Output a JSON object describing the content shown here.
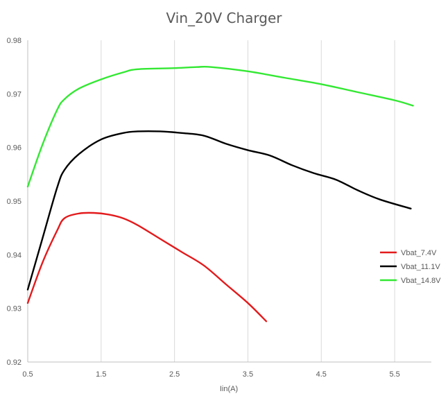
{
  "chart_data": {
    "type": "line",
    "title": "Vin_20V Charger",
    "xlabel": "Iin(A)",
    "ylabel": "",
    "xlim": [
      0.5,
      6.0
    ],
    "ylim": [
      0.92,
      0.98
    ],
    "x_ticks": [
      "0.5",
      "1.5",
      "2.5",
      "3.5",
      "4.5",
      "5.5"
    ],
    "y_ticks": [
      "0.92",
      "0.93",
      "0.94",
      "0.95",
      "0.96",
      "0.97",
      "0.98"
    ],
    "x_tick_values": [
      0.5,
      1.5,
      2.5,
      3.5,
      4.5,
      5.5
    ],
    "y_tick_values": [
      0.92,
      0.93,
      0.94,
      0.95,
      0.96,
      0.97,
      0.98
    ],
    "grid": "vertical",
    "legend_position": "right",
    "series": [
      {
        "name": "Vbat_7.4V",
        "color": "#e31a1c",
        "x": [
          0.5,
          0.7,
          0.9,
          1.0,
          1.2,
          1.4,
          1.6,
          1.8,
          2.0,
          2.3,
          2.6,
          2.9,
          3.2,
          3.5,
          3.75
        ],
        "y": [
          0.931,
          0.9385,
          0.9445,
          0.9468,
          0.9477,
          0.9478,
          0.9475,
          0.9468,
          0.9455,
          0.943,
          0.9405,
          0.938,
          0.9345,
          0.931,
          0.9276
        ]
      },
      {
        "name": "Vbat_11.1V",
        "color": "#000000",
        "x": [
          0.5,
          0.7,
          0.9,
          1.0,
          1.2,
          1.5,
          1.8,
          2.0,
          2.3,
          2.6,
          2.9,
          3.2,
          3.5,
          3.8,
          4.1,
          4.4,
          4.7,
          5.0,
          5.3,
          5.72
        ],
        "y": [
          0.9335,
          0.943,
          0.9525,
          0.9558,
          0.9588,
          0.9615,
          0.9627,
          0.963,
          0.963,
          0.9627,
          0.9622,
          0.9607,
          0.9595,
          0.9585,
          0.9567,
          0.9552,
          0.954,
          0.952,
          0.9503,
          0.9486
        ]
      },
      {
        "name": "Vbat_14.8V",
        "color": "#33e833",
        "x": [
          0.5,
          0.7,
          0.9,
          1.0,
          1.2,
          1.5,
          1.8,
          2.0,
          2.5,
          2.8,
          3.0,
          3.5,
          4.0,
          4.5,
          5.0,
          5.5,
          5.75
        ],
        "y": [
          0.9527,
          0.9605,
          0.967,
          0.969,
          0.971,
          0.9727,
          0.974,
          0.9746,
          0.9748,
          0.975,
          0.975,
          0.9742,
          0.973,
          0.9718,
          0.9703,
          0.9688,
          0.9678
        ]
      }
    ]
  }
}
